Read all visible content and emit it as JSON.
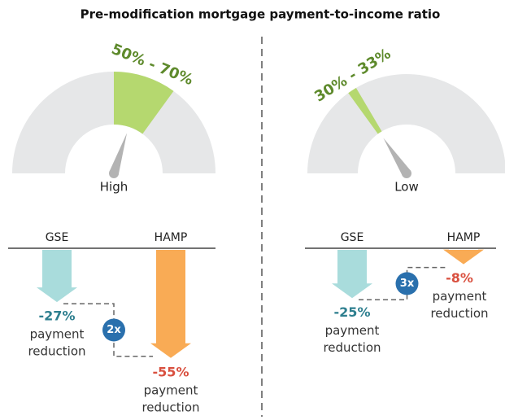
{
  "title": "Pre-modification mortgage payment-to-income ratio",
  "panels": [
    {
      "gauge": {
        "lim": [
          0,
          100
        ],
        "low": 50,
        "high": 70,
        "range_label": "50% - 70%",
        "level_label": "High"
      },
      "columns": [
        {
          "name": "GSE",
          "value": -27,
          "value_label": "-27%",
          "caption": [
            "payment",
            "reduction"
          ]
        },
        {
          "name": "HAMP",
          "value": -55,
          "value_label": "-55%",
          "caption": [
            "payment",
            "reduction"
          ]
        }
      ],
      "multiplier": "2x"
    },
    {
      "gauge": {
        "lim": [
          0,
          100
        ],
        "low": 30,
        "high": 33,
        "range_label": "30% - 33%",
        "level_label": "Low"
      },
      "columns": [
        {
          "name": "GSE",
          "value": -25,
          "value_label": "-25%",
          "caption": [
            "payment",
            "reduction"
          ]
        },
        {
          "name": "HAMP",
          "value": -8,
          "value_label": "-8%",
          "caption": [
            "payment",
            "reduction"
          ]
        }
      ],
      "multiplier": "3x"
    }
  ]
}
